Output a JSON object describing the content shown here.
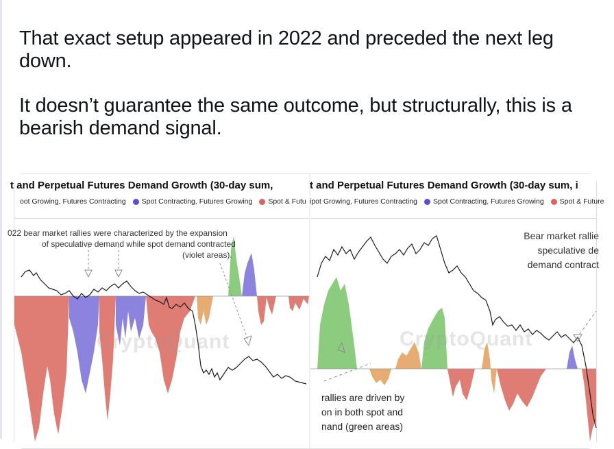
{
  "post": {
    "paragraph_1": "That exact setup appeared in 2022 and preceded the next leg down.",
    "paragraph_2": "It doesn’t guarantee the same outcome, but structurally, this is a bearish demand signal."
  },
  "colors": {
    "spot_growing_futures_contracting": "#e0974f",
    "spot_contracting_futures_growing": "#5a4fd0",
    "spot_and_futures_contracting": "#d9665d",
    "spot_and_futures_growing": "#6fbf5f",
    "price_line": "#1a1a1a"
  },
  "left_panel": {
    "title": "t and Perpetual Futures Demand Growth (30-day sum,",
    "legend": [
      {
        "label": "oot Growing, Futures Contracting",
        "color_key": "spot_growing_futures_contracting"
      },
      {
        "label": "Spot Contracting, Futures Growing",
        "color_key": "spot_contracting_futures_growing"
      },
      {
        "label": "Spot & Futu",
        "color_key": "spot_and_futures_contracting"
      }
    ],
    "annotation_line1": "022 bear market rallies were characterized by the expansion",
    "annotation_line2": "of speculative demand while spot demand contracted",
    "annotation_line3": "(violet areas).",
    "watermark": "CryptoQuant"
  },
  "right_panel": {
    "title": "t and Perpetual Futures Demand Growth (30-day sum, i",
    "legend": [
      {
        "label": "ipot Growing, Futures Contracting",
        "color_key": "spot_growing_futures_contracting"
      },
      {
        "label": "Spot Contracting, Futures Growing",
        "color_key": "spot_contracting_futures_growing"
      },
      {
        "label": "Spot & Future",
        "color_key": "spot_and_futures_contracting"
      }
    ],
    "annotation_top_line1": "Bear market rallie",
    "annotation_top_line2": "speculative de",
    "annotation_top_line3": "demand contract",
    "annotation_bottom_line1": "rallies are driven by",
    "annotation_bottom_line2": "on in both spot and",
    "annotation_bottom_line3": "nand (green areas)",
    "watermark": "CryptoQuant"
  }
}
